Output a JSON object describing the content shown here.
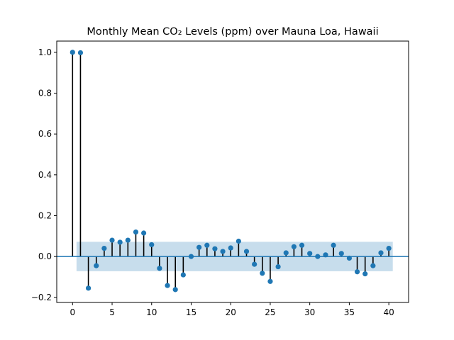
{
  "chart_data": {
    "type": "scatter",
    "title": "Monthly Mean CO₂ Levels (ppm) over Mauna Loa, Hawaii",
    "xlabel": "",
    "ylabel": "",
    "xlim": [
      -2,
      42.5
    ],
    "ylim": [
      -0.225,
      1.055
    ],
    "xticks": [
      0,
      5,
      10,
      15,
      20,
      25,
      30,
      35,
      40
    ],
    "yticks": [
      -0.2,
      0.0,
      0.2,
      0.4,
      0.6,
      0.8,
      1.0
    ],
    "ytick_labels": [
      "−0.2",
      "0.0",
      "0.2",
      "0.4",
      "0.6",
      "0.8",
      "1.0"
    ],
    "confidence_band": {
      "lower": -0.072,
      "upper": 0.072,
      "x_start": 0.5,
      "x_end": 40.5
    },
    "series": [
      {
        "x": [
          0,
          1,
          2,
          3,
          4,
          5,
          6,
          7,
          8,
          9,
          10,
          11,
          12,
          13,
          14,
          15,
          16,
          17,
          18,
          19,
          20,
          21,
          22,
          23,
          24,
          25,
          26,
          27,
          28,
          29,
          30,
          31,
          32,
          33,
          34,
          35,
          36,
          37,
          38,
          39,
          40
        ],
        "values": [
          1.0,
          0.998,
          -0.155,
          -0.045,
          0.04,
          0.08,
          0.07,
          0.08,
          0.12,
          0.115,
          0.058,
          -0.058,
          -0.142,
          -0.162,
          -0.09,
          0.0,
          0.045,
          0.055,
          0.038,
          0.025,
          0.042,
          0.075,
          0.025,
          -0.038,
          -0.082,
          -0.122,
          -0.05,
          0.018,
          0.048,
          0.055,
          0.015,
          0.0,
          0.008,
          0.055,
          0.015,
          -0.008,
          -0.075,
          -0.085,
          -0.045,
          0.018,
          0.04
        ]
      }
    ],
    "colors": {
      "marker": "#1f77b4",
      "stem": "#000000",
      "baseline": "#1f77b4",
      "band": "#1f77b4"
    },
    "grid": false,
    "legend": "none"
  }
}
